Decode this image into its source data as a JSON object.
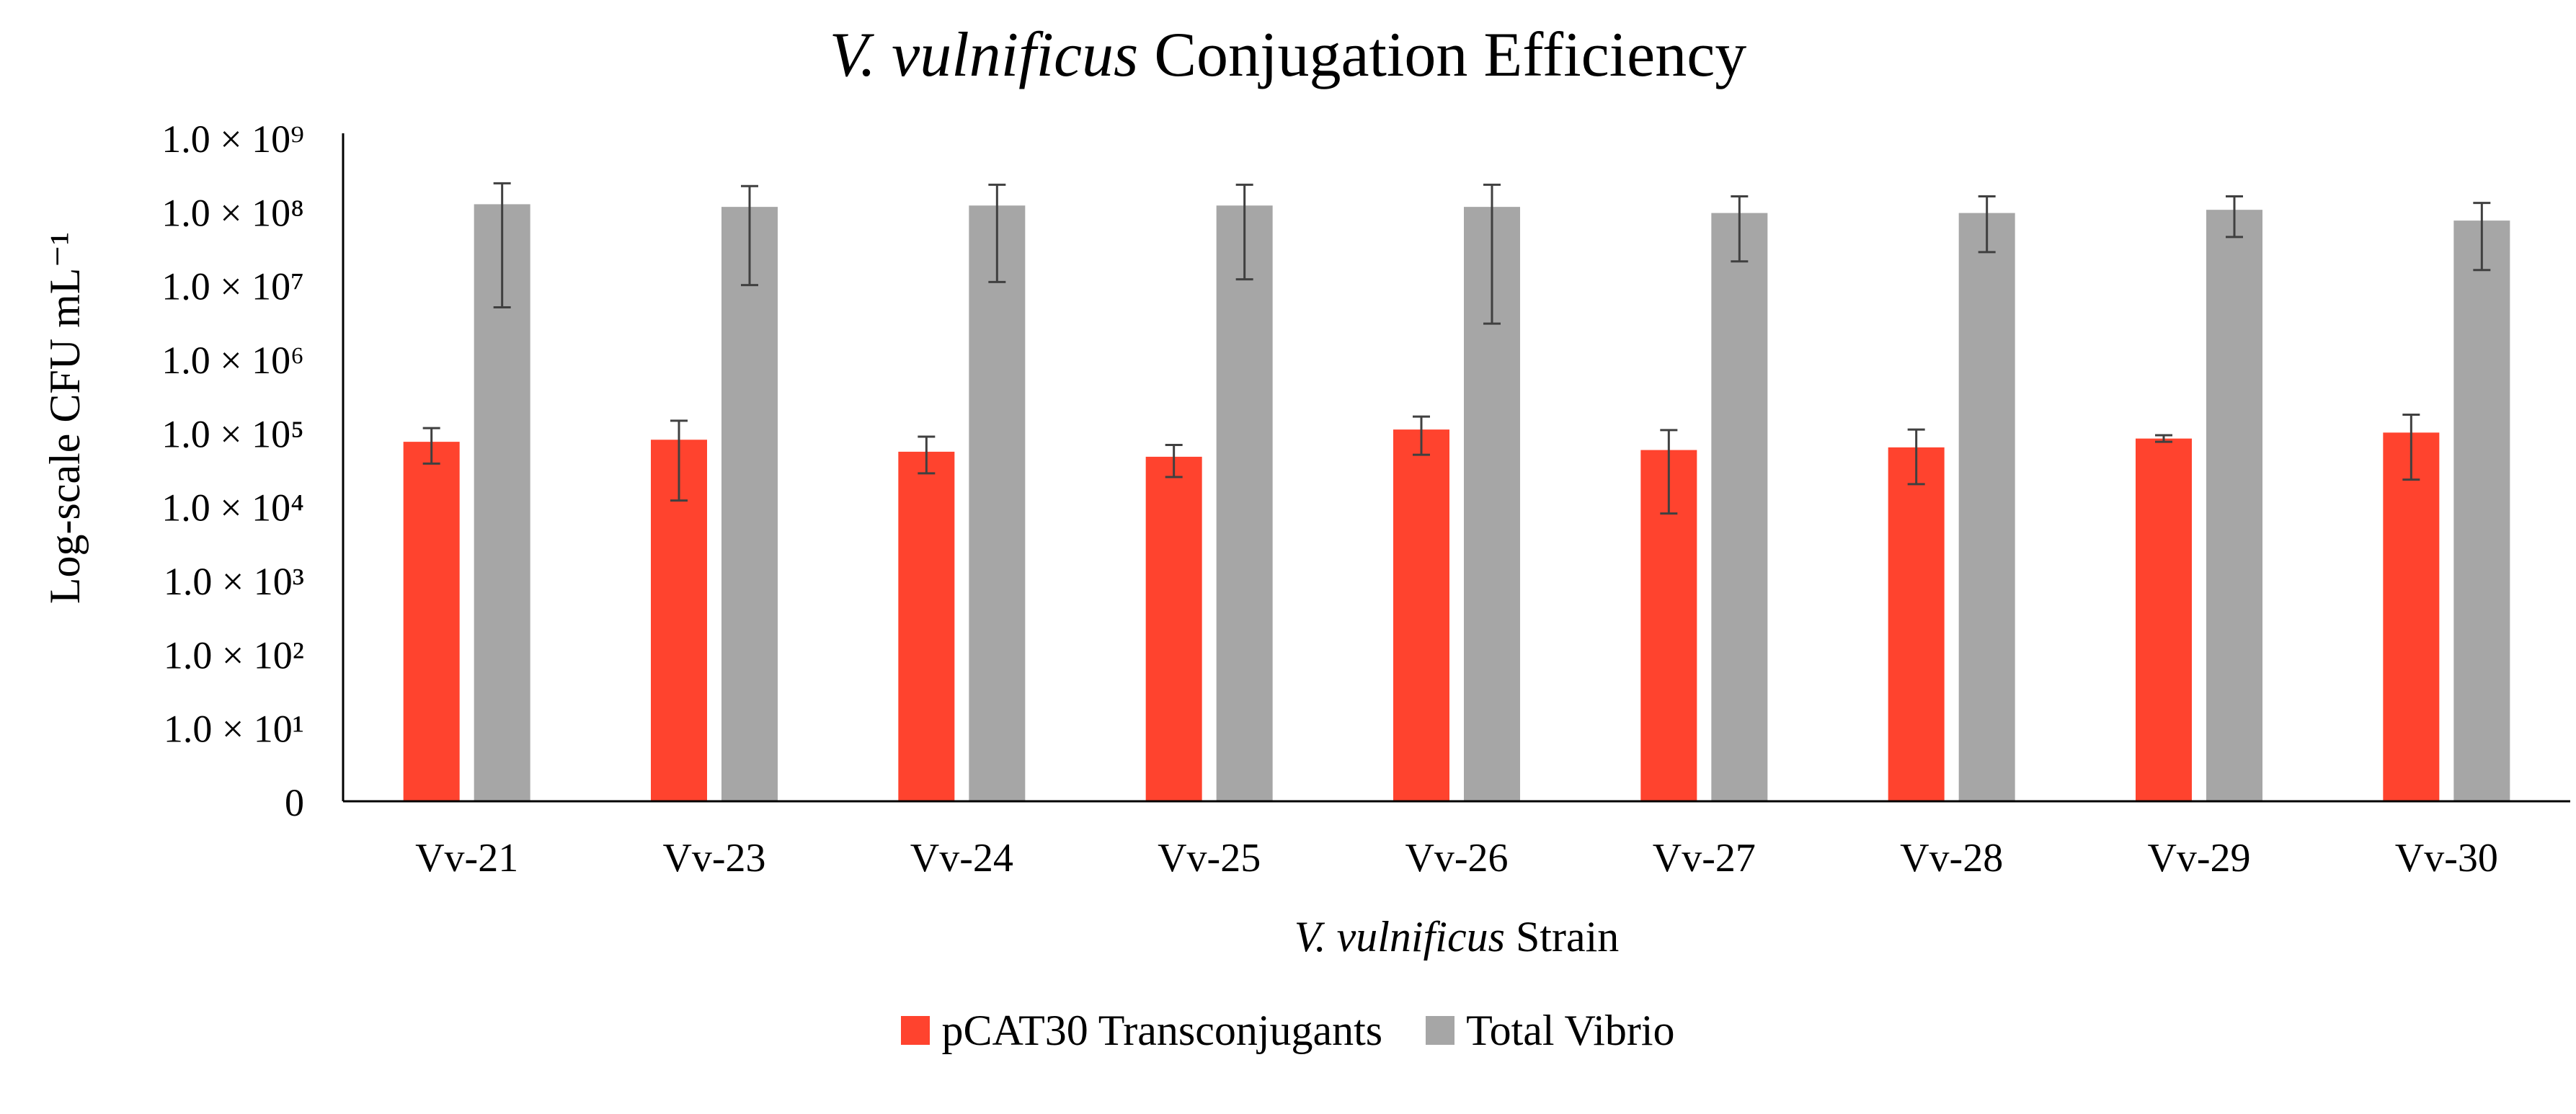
{
  "chart_data": {
    "type": "bar",
    "title_italic": "V. vulnificus",
    "title_rest": " Conjugation Efficiency",
    "ylabel": "Log-scale CFU mL⁻¹",
    "xlabel_italic": "V. vulnificus",
    "xlabel_rest": " Strain",
    "y_scale": "log",
    "ylim": [
      1,
      1000000000
    ],
    "y_ticks": [
      {
        "value": 1,
        "label": "0"
      },
      {
        "value": 10,
        "label": "1.0 × 10¹"
      },
      {
        "value": 100,
        "label": "1.0 × 10²"
      },
      {
        "value": 1000,
        "label": "1.0 × 10³"
      },
      {
        "value": 10000,
        "label": "1.0 × 10⁴"
      },
      {
        "value": 100000,
        "label": "1.0 × 10⁵"
      },
      {
        "value": 1000000,
        "label": "1.0 × 10⁶"
      },
      {
        "value": 10000000,
        "label": "1.0 × 10⁷"
      },
      {
        "value": 100000000,
        "label": "1.0 × 10⁸"
      },
      {
        "value": 1000000000,
        "label": "1.0 × 10⁹"
      }
    ],
    "grid": false,
    "legend_position": "bottom",
    "categories": [
      "Vv-21",
      "Vv-23",
      "Vv-24",
      "Vv-25",
      "Vv-26",
      "Vv-27",
      "Vv-28",
      "Vv-29",
      "Vv-30"
    ],
    "series": [
      {
        "name": "pCAT30 Transconjugants",
        "color": "#ff432e",
        "values": [
          75000,
          80000,
          55000,
          47000,
          110000,
          58000,
          63000,
          83000,
          100000
        ],
        "error_low": [
          38000,
          12000,
          28000,
          25000,
          50000,
          8000,
          20000,
          75000,
          23000
        ],
        "error_high": [
          115000,
          145000,
          88000,
          68000,
          165000,
          108000,
          110000,
          92000,
          175000
        ]
      },
      {
        "name": "Total Vibrio",
        "color": "#a6a6a6",
        "values": [
          125000000,
          115000000,
          120000000,
          120000000,
          115000000,
          95000000,
          95000000,
          105000000,
          75000000
        ],
        "error_low": [
          5000000,
          10000000,
          11000000,
          12000000,
          3000000,
          21000000,
          28000000,
          45000000,
          16000000
        ],
        "error_high": [
          240000000,
          220000000,
          230000000,
          230000000,
          230000000,
          160000000,
          160000000,
          160000000,
          130000000
        ]
      }
    ]
  }
}
